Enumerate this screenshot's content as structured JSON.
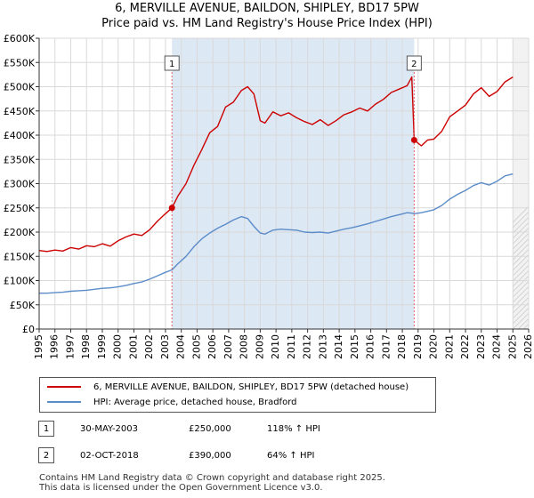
{
  "title_line1": "6, MERVILLE AVENUE, BAILDON, SHIPLEY, BD17 5PW",
  "title_line2": "Price paid vs. HM Land Registry's House Price Index (HPI)",
  "colors": {
    "property": "#cc0000",
    "hpi": "#5b8cc8",
    "marker_line": "#e06666",
    "shade": "#dde8f5"
  },
  "legend": {
    "property_label": "6, MERVILLE AVENUE, BAILDON, SHIPLEY, BD17 5PW (detached house)",
    "hpi_label": "HPI: Average price, detached house, Bradford"
  },
  "transactions": [
    {
      "num": "1",
      "date": "30-MAY-2003",
      "price": "£250,000",
      "hpi": "118% ↑ HPI"
    },
    {
      "num": "2",
      "date": "02-OCT-2018",
      "price": "£390,000",
      "hpi": "64% ↑ HPI"
    }
  ],
  "footer_line1": "Contains HM Land Registry data © Crown copyright and database right 2025.",
  "footer_line2": "This data is licensed under the Open Government Licence v3.0.",
  "chart_data": {
    "type": "line",
    "title": "6, MERVILLE AVENUE, BAILDON, SHIPLEY, BD17 5PW",
    "subtitle": "Price paid vs. HM Land Registry's House Price Index (HPI)",
    "xlim": [
      1995,
      2026
    ],
    "ylim": [
      0,
      600000
    ],
    "xticks": [
      1995,
      1996,
      1997,
      1998,
      1999,
      2000,
      2001,
      2002,
      2003,
      2004,
      2005,
      2006,
      2007,
      2008,
      2009,
      2010,
      2011,
      2012,
      2013,
      2014,
      2015,
      2016,
      2017,
      2018,
      2019,
      2020,
      2021,
      2022,
      2023,
      2024,
      2025,
      2026
    ],
    "yticks": [
      {
        "v": 0,
        "label": "£0"
      },
      {
        "v": 50000,
        "label": "£50K"
      },
      {
        "v": 100000,
        "label": "£100K"
      },
      {
        "v": 150000,
        "label": "£150K"
      },
      {
        "v": 200000,
        "label": "£200K"
      },
      {
        "v": 250000,
        "label": "£250K"
      },
      {
        "v": 300000,
        "label": "£300K"
      },
      {
        "v": 350000,
        "label": "£350K"
      },
      {
        "v": 400000,
        "label": "£400K"
      },
      {
        "v": 450000,
        "label": "£450K"
      },
      {
        "v": 500000,
        "label": "£500K"
      },
      {
        "v": 550000,
        "label": "£550K"
      },
      {
        "v": 600000,
        "label": "£600K"
      }
    ],
    "grid": true,
    "shaded_ranges": [
      [
        2003.41,
        2018.75
      ]
    ],
    "future_from": 2025.0,
    "sales": [
      {
        "label": "1",
        "x": 2003.41,
        "y": 250000
      },
      {
        "label": "2",
        "x": 2018.75,
        "y": 390000
      }
    ],
    "series": [
      {
        "name": "6, MERVILLE AVENUE, BAILDON, SHIPLEY, BD17 5PW (detached house)",
        "x": [
          1995,
          1995.5,
          1996,
          1996.5,
          1997,
          1997.5,
          1998,
          1998.5,
          1999,
          1999.5,
          2000,
          2000.5,
          2001,
          2001.5,
          2002,
          2002.5,
          2003,
          2003.41,
          2003.8,
          2004.3,
          2004.8,
          2005.3,
          2005.8,
          2006.3,
          2006.8,
          2007.3,
          2007.8,
          2008.2,
          2008.6,
          2009,
          2009.3,
          2009.8,
          2010.3,
          2010.8,
          2011.3,
          2011.8,
          2012.3,
          2012.8,
          2013.3,
          2013.8,
          2014.3,
          2014.8,
          2015.3,
          2015.8,
          2016.3,
          2016.8,
          2017.3,
          2017.8,
          2018.3,
          2018.6,
          2018.75,
          2019.2,
          2019.6,
          2020,
          2020.5,
          2021,
          2021.5,
          2022,
          2022.5,
          2023,
          2023.5,
          2024,
          2024.5,
          2025
        ],
        "values": [
          162000,
          160000,
          163000,
          161000,
          168000,
          165000,
          172000,
          170000,
          176000,
          171000,
          182000,
          190000,
          196000,
          193000,
          205000,
          223000,
          238000,
          250000,
          275000,
          300000,
          338000,
          370000,
          405000,
          418000,
          458000,
          468000,
          492000,
          500000,
          485000,
          430000,
          425000,
          448000,
          440000,
          446000,
          436000,
          428000,
          422000,
          432000,
          420000,
          430000,
          442000,
          448000,
          456000,
          450000,
          464000,
          474000,
          488000,
          495000,
          502000,
          520000,
          390000,
          378000,
          390000,
          392000,
          408000,
          438000,
          450000,
          462000,
          485000,
          498000,
          480000,
          490000,
          510000,
          520000
        ]
      },
      {
        "name": "HPI: Average price, detached house, Bradford",
        "x": [
          1995,
          1995.5,
          1996,
          1996.5,
          1997,
          1997.5,
          1998,
          1998.5,
          1999,
          1999.5,
          2000,
          2000.5,
          2001,
          2001.5,
          2002,
          2002.5,
          2003,
          2003.41,
          2003.8,
          2004.3,
          2004.8,
          2005.3,
          2005.8,
          2006.3,
          2006.8,
          2007.3,
          2007.8,
          2008.2,
          2008.6,
          2009,
          2009.3,
          2009.8,
          2010.3,
          2010.8,
          2011.3,
          2011.8,
          2012.3,
          2012.8,
          2013.3,
          2013.8,
          2014.3,
          2014.8,
          2015.3,
          2015.8,
          2016.3,
          2016.8,
          2017.3,
          2017.8,
          2018.3,
          2018.6,
          2018.75,
          2019.2,
          2019.6,
          2020,
          2020.5,
          2021,
          2021.5,
          2022,
          2022.5,
          2023,
          2023.5,
          2024,
          2024.5,
          2025
        ],
        "values": [
          74000,
          74000,
          75000,
          76000,
          78000,
          79000,
          80000,
          82000,
          84000,
          85000,
          87000,
          90000,
          94000,
          97000,
          103000,
          110000,
          117000,
          122000,
          135000,
          150000,
          170000,
          186000,
          198000,
          208000,
          216000,
          225000,
          232000,
          228000,
          212000,
          198000,
          196000,
          204000,
          206000,
          205000,
          204000,
          200000,
          199000,
          200000,
          198000,
          202000,
          206000,
          209000,
          213000,
          217000,
          222000,
          227000,
          232000,
          236000,
          240000,
          239000,
          238000,
          240000,
          243000,
          246000,
          255000,
          268000,
          278000,
          286000,
          296000,
          302000,
          297000,
          305000,
          316000,
          320000
        ]
      }
    ]
  }
}
